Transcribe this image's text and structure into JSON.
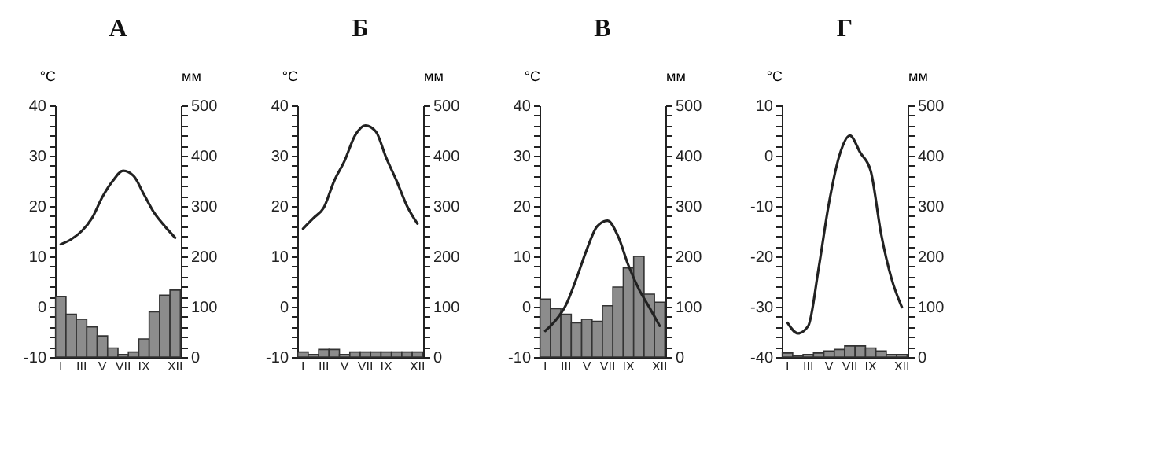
{
  "chart_data": [
    {
      "type": "line",
      "title": "А",
      "ylabel": "°C",
      "y2label": "мм",
      "categories": [
        "I",
        null,
        "III",
        null,
        "V",
        null,
        "VII",
        null,
        "IX",
        null,
        null,
        "XII"
      ],
      "ylim": [
        -10,
        40
      ],
      "yticks": [
        -10,
        {
          "value": -8,
          "label": null
        },
        {
          "value": -6,
          "label": null
        },
        {
          "value": -4,
          "label": null
        },
        {
          "value": -2,
          "label": null
        },
        0,
        {
          "value": 2,
          "label": null
        },
        {
          "value": 4,
          "label": null
        },
        {
          "value": 6,
          "label": null
        },
        {
          "value": 8,
          "label": null
        },
        10,
        {
          "value": 12,
          "label": null
        },
        {
          "value": 14,
          "label": null
        },
        {
          "value": 16,
          "label": null
        },
        {
          "value": 18,
          "label": null
        },
        20,
        {
          "value": 22,
          "label": null
        },
        {
          "value": 24,
          "label": null
        },
        {
          "value": 26,
          "label": null
        },
        {
          "value": 28,
          "label": null
        },
        30,
        {
          "value": 32,
          "label": null
        },
        {
          "value": 34,
          "label": null
        },
        {
          "value": 36,
          "label": null
        },
        {
          "value": 38,
          "label": null
        },
        40
      ],
      "y2lim": [
        0,
        500
      ],
      "y2ticks": [
        0,
        {
          "value": 20,
          "label": null
        },
        {
          "value": 40,
          "label": null
        },
        {
          "value": 60,
          "label": null
        },
        {
          "value": 80,
          "label": null
        },
        100,
        {
          "value": 120,
          "label": null
        },
        {
          "value": 140,
          "label": null
        },
        {
          "value": 160,
          "label": null
        },
        {
          "value": 180,
          "label": null
        },
        200,
        {
          "value": 220,
          "label": null
        },
        {
          "value": 240,
          "label": null
        },
        {
          "value": 260,
          "label": null
        },
        {
          "value": 280,
          "label": null
        },
        300,
        {
          "value": 320,
          "label": null
        },
        {
          "value": 340,
          "label": null
        },
        {
          "value": 360,
          "label": null
        },
        {
          "value": 380,
          "label": null
        },
        400,
        {
          "value": 420,
          "label": null
        },
        {
          "value": 440,
          "label": null
        },
        {
          "value": 460,
          "label": null
        },
        {
          "value": 480,
          "label": null
        },
        500
      ],
      "series": [
        {
          "type": "bar",
          "axis": "y2",
          "color": "#8c8c8c",
          "values": [
            120,
            85,
            75,
            60,
            42,
            18,
            5,
            10,
            36,
            90,
            123,
            133
          ]
        },
        {
          "color": "#222222",
          "values": [
            12.4,
            13.4,
            15,
            17.6,
            21.8,
            25,
            27,
            26,
            22.3,
            18.6,
            16,
            13.7
          ]
        }
      ]
    },
    {
      "type": "line",
      "title": "Б",
      "ylabel": "°C",
      "y2label": "мм",
      "categories": [
        "I",
        null,
        "III",
        null,
        "V",
        null,
        "VII",
        null,
        "IX",
        null,
        null,
        "XII"
      ],
      "ylim": [
        -10,
        40
      ],
      "yticks": [
        -10,
        {
          "value": -8,
          "label": null
        },
        {
          "value": -6,
          "label": null
        },
        {
          "value": -4,
          "label": null
        },
        {
          "value": -2,
          "label": null
        },
        0,
        {
          "value": 2,
          "label": null
        },
        {
          "value": 4,
          "label": null
        },
        {
          "value": 6,
          "label": null
        },
        {
          "value": 8,
          "label": null
        },
        10,
        {
          "value": 12,
          "label": null
        },
        {
          "value": 14,
          "label": null
        },
        {
          "value": 16,
          "label": null
        },
        {
          "value": 18,
          "label": null
        },
        20,
        {
          "value": 22,
          "label": null
        },
        {
          "value": 24,
          "label": null
        },
        {
          "value": 26,
          "label": null
        },
        {
          "value": 28,
          "label": null
        },
        30,
        {
          "value": 32,
          "label": null
        },
        {
          "value": 34,
          "label": null
        },
        {
          "value": 36,
          "label": null
        },
        {
          "value": 38,
          "label": null
        },
        40
      ],
      "y2lim": [
        0,
        500
      ],
      "y2ticks": [
        0,
        {
          "value": 20,
          "label": null
        },
        {
          "value": 40,
          "label": null
        },
        {
          "value": 60,
          "label": null
        },
        {
          "value": 80,
          "label": null
        },
        100,
        {
          "value": 120,
          "label": null
        },
        {
          "value": 140,
          "label": null
        },
        {
          "value": 160,
          "label": null
        },
        {
          "value": 180,
          "label": null
        },
        200,
        {
          "value": 220,
          "label": null
        },
        {
          "value": 240,
          "label": null
        },
        {
          "value": 260,
          "label": null
        },
        {
          "value": 280,
          "label": null
        },
        300,
        {
          "value": 320,
          "label": null
        },
        {
          "value": 340,
          "label": null
        },
        {
          "value": 360,
          "label": null
        },
        {
          "value": 380,
          "label": null
        },
        400,
        {
          "value": 420,
          "label": null
        },
        {
          "value": 440,
          "label": null
        },
        {
          "value": 460,
          "label": null
        },
        {
          "value": 480,
          "label": null
        },
        500
      ],
      "series": [
        {
          "type": "bar",
          "axis": "y2",
          "color": "#8c8c8c",
          "values": [
            10,
            5,
            15,
            15,
            5,
            10,
            10,
            10,
            10,
            10,
            10,
            10
          ]
        },
        {
          "color": "#222222",
          "values": [
            15.5,
            17.6,
            19.7,
            25,
            29,
            34,
            36,
            34.8,
            29.6,
            25,
            20,
            16.5
          ]
        }
      ]
    },
    {
      "type": "line",
      "title": "В",
      "ylabel": "°C",
      "y2label": "мм",
      "categories": [
        "I",
        null,
        "III",
        null,
        "V",
        null,
        "VII",
        null,
        "IX",
        null,
        null,
        "XII"
      ],
      "ylim": [
        -10,
        40
      ],
      "yticks": [
        -10,
        {
          "value": -8,
          "label": null
        },
        {
          "value": -6,
          "label": null
        },
        {
          "value": -4,
          "label": null
        },
        {
          "value": -2,
          "label": null
        },
        0,
        {
          "value": 2,
          "label": null
        },
        {
          "value": 4,
          "label": null
        },
        {
          "value": 6,
          "label": null
        },
        {
          "value": 8,
          "label": null
        },
        10,
        {
          "value": 12,
          "label": null
        },
        {
          "value": 14,
          "label": null
        },
        {
          "value": 16,
          "label": null
        },
        {
          "value": 18,
          "label": null
        },
        20,
        {
          "value": 22,
          "label": null
        },
        {
          "value": 24,
          "label": null
        },
        {
          "value": 26,
          "label": null
        },
        {
          "value": 28,
          "label": null
        },
        30,
        {
          "value": 32,
          "label": null
        },
        {
          "value": 34,
          "label": null
        },
        {
          "value": 36,
          "label": null
        },
        {
          "value": 38,
          "label": null
        },
        40
      ],
      "y2lim": [
        0,
        500
      ],
      "y2ticks": [
        0,
        {
          "value": 20,
          "label": null
        },
        {
          "value": 40,
          "label": null
        },
        {
          "value": 60,
          "label": null
        },
        {
          "value": 80,
          "label": null
        },
        100,
        {
          "value": 120,
          "label": null
        },
        {
          "value": 140,
          "label": null
        },
        {
          "value": 160,
          "label": null
        },
        {
          "value": 180,
          "label": null
        },
        200,
        {
          "value": 220,
          "label": null
        },
        {
          "value": 240,
          "label": null
        },
        {
          "value": 260,
          "label": null
        },
        {
          "value": 280,
          "label": null
        },
        300,
        {
          "value": 320,
          "label": null
        },
        {
          "value": 340,
          "label": null
        },
        {
          "value": 360,
          "label": null
        },
        {
          "value": 380,
          "label": null
        },
        400,
        {
          "value": 420,
          "label": null
        },
        {
          "value": 440,
          "label": null
        },
        {
          "value": 460,
          "label": null
        },
        {
          "value": 480,
          "label": null
        },
        500
      ],
      "series": [
        {
          "type": "bar",
          "axis": "y2",
          "color": "#8c8c8c",
          "values": [
            115,
            96,
            85,
            68,
            75,
            71,
            102,
            139,
            177,
            200,
            125,
            109
          ]
        },
        {
          "color": "#222222",
          "values": [
            -4.8,
            -2.7,
            0.4,
            5.6,
            11.4,
            16,
            17.1,
            14,
            8.2,
            3.5,
            -0.1,
            -3.8
          ]
        }
      ]
    },
    {
      "type": "line",
      "title": "Г",
      "ylabel": "°C",
      "y2label": "мм",
      "categories": [
        "I",
        null,
        "III",
        null,
        "V",
        null,
        "VII",
        null,
        "IX",
        null,
        null,
        "XII"
      ],
      "ylim": [
        -40,
        10
      ],
      "yticks": [
        -40,
        {
          "value": -38,
          "label": null
        },
        {
          "value": -36,
          "label": null
        },
        {
          "value": -34,
          "label": null
        },
        {
          "value": -32,
          "label": null
        },
        -30,
        {
          "value": -28,
          "label": null
        },
        {
          "value": -26,
          "label": null
        },
        {
          "value": -24,
          "label": null
        },
        {
          "value": -22,
          "label": null
        },
        -20,
        {
          "value": -18,
          "label": null
        },
        {
          "value": -16,
          "label": null
        },
        {
          "value": -14,
          "label": null
        },
        {
          "value": -12,
          "label": null
        },
        -10,
        {
          "value": -8,
          "label": null
        },
        {
          "value": -6,
          "label": null
        },
        {
          "value": -4,
          "label": null
        },
        {
          "value": -2,
          "label": null
        },
        0,
        {
          "value": 2,
          "label": null
        },
        {
          "value": 4,
          "label": null
        },
        {
          "value": 6,
          "label": null
        },
        {
          "value": 8,
          "label": null
        },
        10
      ],
      "y2lim": [
        0,
        500
      ],
      "y2ticks": [
        0,
        {
          "value": 20,
          "label": null
        },
        {
          "value": 40,
          "label": null
        },
        {
          "value": 60,
          "label": null
        },
        {
          "value": 80,
          "label": null
        },
        100,
        {
          "value": 120,
          "label": null
        },
        {
          "value": 140,
          "label": null
        },
        {
          "value": 160,
          "label": null
        },
        {
          "value": 180,
          "label": null
        },
        200,
        {
          "value": 220,
          "label": null
        },
        {
          "value": 240,
          "label": null
        },
        {
          "value": 260,
          "label": null
        },
        {
          "value": 280,
          "label": null
        },
        300,
        {
          "value": 320,
          "label": null
        },
        {
          "value": 340,
          "label": null
        },
        {
          "value": 360,
          "label": null
        },
        {
          "value": 380,
          "label": null
        },
        400,
        {
          "value": 420,
          "label": null
        },
        {
          "value": 440,
          "label": null
        },
        {
          "value": 460,
          "label": null
        },
        {
          "value": 480,
          "label": null
        },
        500
      ],
      "series": [
        {
          "type": "bar",
          "axis": "y2",
          "color": "#8c8c8c",
          "values": [
            8,
            3,
            5,
            8,
            12,
            15,
            22,
            22,
            18,
            12,
            5,
            5
          ]
        },
        {
          "color": "#222222",
          "values": [
            -33.2,
            -35.3,
            -33.8,
            -22.3,
            -9.3,
            0.1,
            4,
            0.6,
            -3,
            -15.5,
            -24.4,
            -30.1
          ]
        }
      ]
    }
  ]
}
